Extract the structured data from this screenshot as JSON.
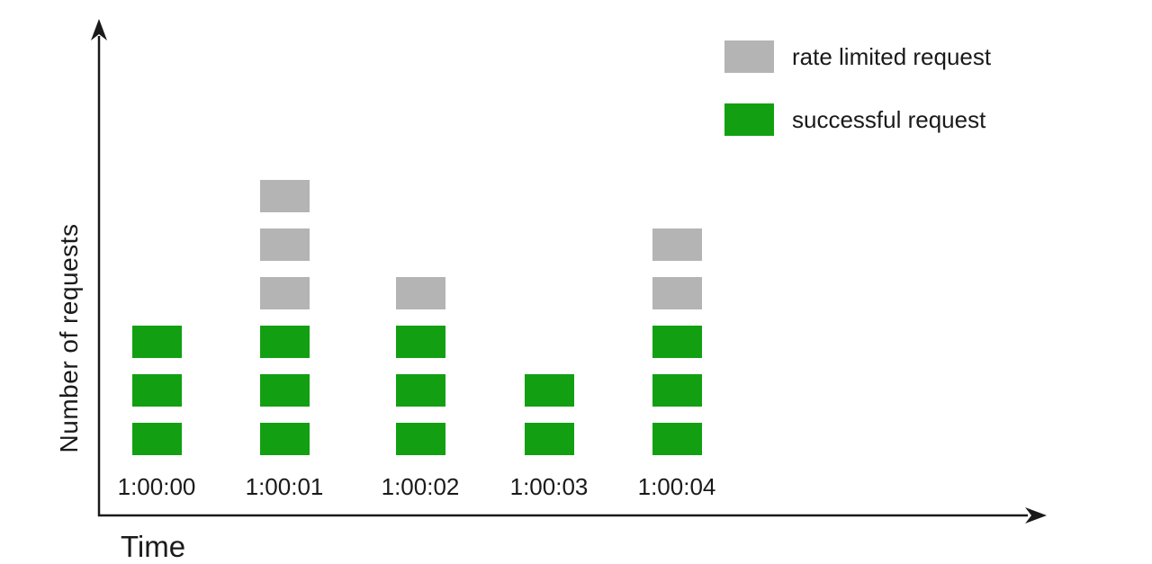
{
  "colors": {
    "successful": "#12a012",
    "rate_limited": "#b4b4b4",
    "axis": "#1a1a1a"
  },
  "axes": {
    "x_label": "Time",
    "y_label": "Number of requests"
  },
  "legend": {
    "items": [
      {
        "label": "rate limited request",
        "color_key": "rate_limited"
      },
      {
        "label": "successful request",
        "color_key": "successful"
      }
    ]
  },
  "chart_data": {
    "type": "bar",
    "subtype": "stacked-unit-blocks",
    "title": "",
    "xlabel": "Time",
    "ylabel": "Number of requests",
    "categories": [
      "1:00:00",
      "1:00:01",
      "1:00:02",
      "1:00:03",
      "1:00:04"
    ],
    "series": [
      {
        "name": "successful request",
        "values": [
          3,
          3,
          3,
          2,
          3
        ]
      },
      {
        "name": "rate limited request",
        "values": [
          0,
          3,
          1,
          0,
          2
        ]
      }
    ],
    "ylim": [
      0,
      6
    ],
    "grid": false,
    "legend_position": "top-right"
  }
}
